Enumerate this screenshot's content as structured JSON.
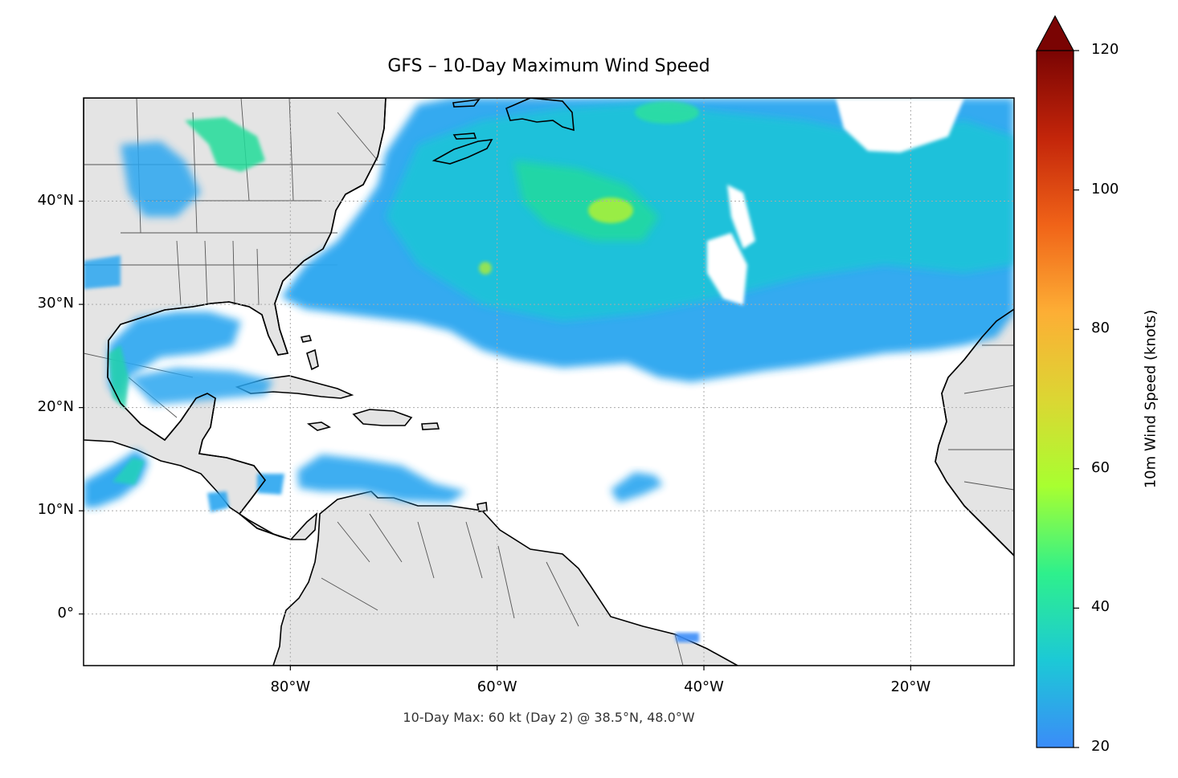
{
  "map": {
    "title": "GFS – 10-Day Maximum Wind Speed",
    "footnote": "10-Day Max: 60 kt (Day 2) @ 38.5°N, 48.0°W",
    "extent": {
      "lon_min": -100,
      "lon_max": -10,
      "lat_min": -5,
      "lat_max": 50
    },
    "lat_ticks": [
      {
        "value": 40,
        "label": "40°N"
      },
      {
        "value": 30,
        "label": "30°N"
      },
      {
        "value": 20,
        "label": "20°N"
      },
      {
        "value": 10,
        "label": "10°N"
      },
      {
        "value": 0,
        "label": "0°"
      }
    ],
    "lon_ticks": [
      {
        "value": -80,
        "label": "80°W"
      },
      {
        "value": -60,
        "label": "60°W"
      },
      {
        "value": -40,
        "label": "40°W"
      },
      {
        "value": -20,
        "label": "20°W"
      }
    ],
    "land_color": "#e4e4e4",
    "ocean_color": "#ffffff",
    "gridlines": true
  },
  "colorbar": {
    "label": "10m Wind Speed (knots)",
    "min": 20,
    "max": 120,
    "extend": "max",
    "ticks": [
      {
        "value": 20,
        "label": "20"
      },
      {
        "value": 40,
        "label": "40"
      },
      {
        "value": 60,
        "label": "60"
      },
      {
        "value": 80,
        "label": "80"
      },
      {
        "value": 100,
        "label": "100"
      },
      {
        "value": 120,
        "label": "120"
      }
    ],
    "colormap": [
      "#3b8cf8",
      "#1cc9d6",
      "#2ef08c",
      "#a8ff30",
      "#dcd633",
      "#fdae35",
      "#f06318",
      "#c3250a",
      "#7a0403"
    ]
  },
  "maximum": {
    "speed_kt": 60,
    "day": 2,
    "lat": 38.5,
    "lon": -48.0
  }
}
